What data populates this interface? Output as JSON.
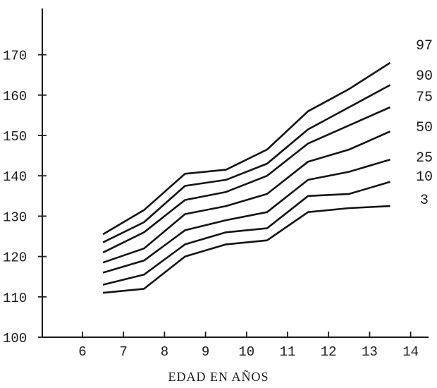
{
  "chart_data": {
    "type": "line",
    "title": "",
    "xlabel": "EDAD EN AÑOS",
    "ylabel": "",
    "x_ticks": [
      "6",
      "7",
      "8",
      "9",
      "10",
      "11",
      "12",
      "13",
      "14"
    ],
    "y_ticks": [
      "100",
      "110",
      "120",
      "130",
      "140",
      "150",
      "160",
      "170"
    ],
    "xlim": [
      5.1,
      14.3
    ],
    "ylim": [
      100,
      177
    ],
    "grid": false,
    "legend": "right, labels at line ends",
    "x": [
      6.5,
      7.5,
      8.5,
      9.5,
      10.5,
      11.5,
      12.5,
      13.5
    ],
    "series": [
      {
        "name": "97",
        "values": [
          125.5,
          131.5,
          140.5,
          141.5,
          146.5,
          156,
          161.5,
          168
        ]
      },
      {
        "name": "90",
        "values": [
          123.5,
          128.5,
          137.5,
          139,
          143,
          151.5,
          157,
          162.5
        ]
      },
      {
        "name": "75",
        "values": [
          121,
          126,
          134,
          136,
          140,
          148,
          152.5,
          157
        ]
      },
      {
        "name": "50",
        "values": [
          118.5,
          122,
          130.5,
          132.5,
          135.5,
          143.5,
          146.5,
          151
        ]
      },
      {
        "name": "25",
        "values": [
          116,
          119,
          126.5,
          129,
          131,
          139,
          141,
          144
        ]
      },
      {
        "name": "10",
        "values": [
          113,
          115.5,
          123,
          126,
          127,
          135,
          135.5,
          138.5
        ]
      },
      {
        "name": "3",
        "values": [
          111,
          112,
          120,
          123,
          124,
          131,
          132,
          132.5
        ]
      }
    ]
  }
}
